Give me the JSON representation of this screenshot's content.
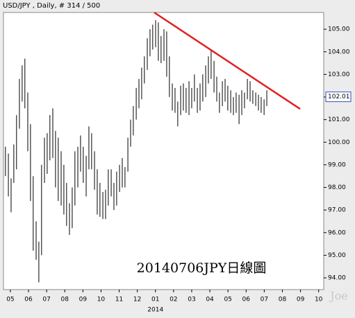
{
  "chart_data": {
    "type": "range",
    "title": "USD/JPY , Daily, # 314 / 500",
    "annotation": "20140706JPY日線圖",
    "watermark": "Joe",
    "year_label": "2014",
    "last_price": 102.01,
    "xlim": [
      -0.38,
      17.28
    ],
    "ylim": [
      93.48,
      105.74
    ],
    "xticks": [
      {
        "value": 0,
        "label": "05"
      },
      {
        "value": 1,
        "label": "06"
      },
      {
        "value": 2,
        "label": "07"
      },
      {
        "value": 3,
        "label": "08"
      },
      {
        "value": 4,
        "label": "09"
      },
      {
        "value": 5,
        "label": "10"
      },
      {
        "value": 6,
        "label": "11"
      },
      {
        "value": 7,
        "label": "12"
      },
      {
        "value": 8,
        "label": "01"
      },
      {
        "value": 9,
        "label": "02"
      },
      {
        "value": 10,
        "label": "03"
      },
      {
        "value": 11,
        "label": "04"
      },
      {
        "value": 12,
        "label": "05"
      },
      {
        "value": 13,
        "label": "06"
      },
      {
        "value": 14,
        "label": "07"
      },
      {
        "value": 15,
        "label": "08"
      },
      {
        "value": 16,
        "label": "09"
      },
      {
        "value": 17,
        "label": "10"
      }
    ],
    "yticks": [
      {
        "value": 94,
        "label": "94.00"
      },
      {
        "value": 95,
        "label": "95.00"
      },
      {
        "value": 96,
        "label": "96.00"
      },
      {
        "value": 97,
        "label": "97.00"
      },
      {
        "value": 98,
        "label": "98.00"
      },
      {
        "value": 99,
        "label": "99.00"
      },
      {
        "value": 100,
        "label": "100.00"
      },
      {
        "value": 101,
        "label": "101.00"
      },
      {
        "value": 102,
        "label": "102.00"
      },
      {
        "value": 103,
        "label": "103.00"
      },
      {
        "value": 104,
        "label": "104.00"
      },
      {
        "value": 105,
        "label": "105.00"
      }
    ],
    "color": "#000000",
    "x": [
      -0.27,
      -0.11,
      0.04,
      0.19,
      0.34,
      0.5,
      0.65,
      0.8,
      0.96,
      1.11,
      1.26,
      1.42,
      1.57,
      1.72,
      1.88,
      2.03,
      2.18,
      2.34,
      2.49,
      2.64,
      2.8,
      2.95,
      3.1,
      3.26,
      3.41,
      3.56,
      3.72,
      3.87,
      4.02,
      4.18,
      4.33,
      4.48,
      4.64,
      4.79,
      4.94,
      5.1,
      5.25,
      5.4,
      5.56,
      5.71,
      5.86,
      6.02,
      6.17,
      6.32,
      6.48,
      6.63,
      6.78,
      6.94,
      7.09,
      7.24,
      7.39,
      7.55,
      7.7,
      7.85,
      8.01,
      8.16,
      8.31,
      8.47,
      8.62,
      8.77,
      8.93,
      9.08,
      9.23,
      9.39,
      9.54,
      9.69,
      9.85,
      10.0,
      10.15,
      10.31,
      10.46,
      10.61,
      10.77,
      10.92,
      11.07,
      11.23,
      11.38,
      11.53,
      11.69,
      11.84,
      11.99,
      12.15,
      12.3,
      12.45,
      12.61,
      12.76,
      12.91,
      13.07,
      13.22,
      13.37,
      13.53,
      13.68,
      13.83,
      13.99,
      14.14
    ],
    "high": [
      99.8,
      99.5,
      98.4,
      99.9,
      101.2,
      102.8,
      103.4,
      103.7,
      102.2,
      100.8,
      98.5,
      96.5,
      95.6,
      99.0,
      100.2,
      100.4,
      101.2,
      101.5,
      100.5,
      100.2,
      99.6,
      99.0,
      98.2,
      97.3,
      98.0,
      99.6,
      99.8,
      100.3,
      99.8,
      99.4,
      100.7,
      100.4,
      99.6,
      98.8,
      98.2,
      97.8,
      97.9,
      98.8,
      98.8,
      98.2,
      98.7,
      99.0,
      99.3,
      98.9,
      100.2,
      101.0,
      101.6,
      102.4,
      102.8,
      103.3,
      103.8,
      104.6,
      105.0,
      105.2,
      105.4,
      105.3,
      104.7,
      105.0,
      104.9,
      103.8,
      102.6,
      102.4,
      101.8,
      102.5,
      102.6,
      102.4,
      102.7,
      102.4,
      103.0,
      102.4,
      102.6,
      103.0,
      103.4,
      103.8,
      104.1,
      103.6,
      102.9,
      102.2,
      102.7,
      102.8,
      102.5,
      102.3,
      102.0,
      102.2,
      102.1,
      102.3,
      102.2,
      102.8,
      102.7,
      102.3,
      102.2,
      102.1,
      102.0,
      101.9,
      102.3
    ],
    "low": [
      98.5,
      97.6,
      96.9,
      98.2,
      98.8,
      100.6,
      101.8,
      101.5,
      99.6,
      97.4,
      95.2,
      94.8,
      93.8,
      95.0,
      98.2,
      98.6,
      99.2,
      99.3,
      98.0,
      97.4,
      97.2,
      96.8,
      96.3,
      95.9,
      96.2,
      97.2,
      98.0,
      98.7,
      98.2,
      97.6,
      98.8,
      98.8,
      97.9,
      96.8,
      96.7,
      96.6,
      96.6,
      97.2,
      97.6,
      97.0,
      97.2,
      97.8,
      98.0,
      98.0,
      98.7,
      99.8,
      100.3,
      101.0,
      101.5,
      101.9,
      102.6,
      103.2,
      103.8,
      104.1,
      104.2,
      103.6,
      103.5,
      103.6,
      102.9,
      102.0,
      101.4,
      101.3,
      100.7,
      101.2,
      101.4,
      101.3,
      101.2,
      101.5,
      101.8,
      101.3,
      101.4,
      101.8,
      102.0,
      102.6,
      102.8,
      102.2,
      101.8,
      101.3,
      101.6,
      101.8,
      101.4,
      101.3,
      101.2,
      101.3,
      100.8,
      101.2,
      101.5,
      101.9,
      101.8,
      101.7,
      101.6,
      101.4,
      101.3,
      101.2,
      101.6
    ],
    "trendline": {
      "x": [
        7.93,
        15.98
      ],
      "y": [
        105.74,
        101.47
      ],
      "color": "#e02020"
    }
  }
}
